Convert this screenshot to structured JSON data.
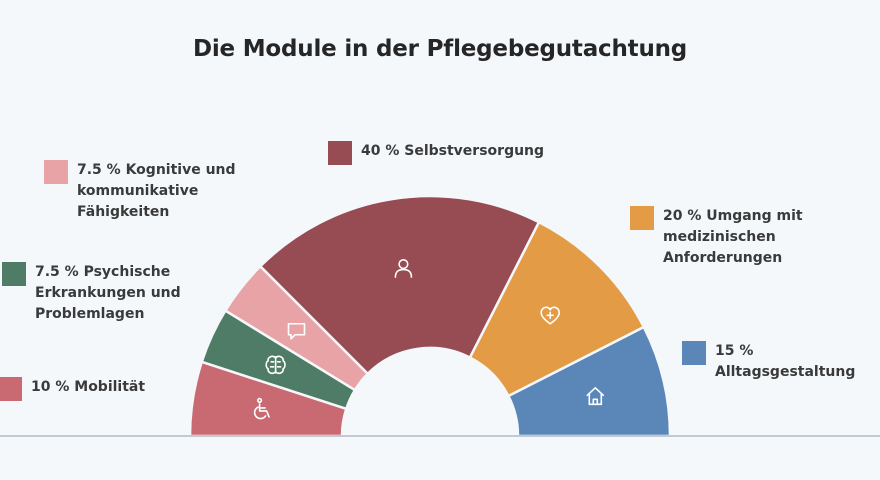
{
  "title": "Die Module in der Pflegebegutachtung",
  "chart_data": {
    "type": "pie",
    "variant": "half-donut",
    "title": "Die Module in der Pflegebegutachtung",
    "unit": "%",
    "total": 100,
    "slices": [
      {
        "label": "10 % Mobilität",
        "value": 10,
        "color": "#c96a72",
        "icon": "wheelchair-icon"
      },
      {
        "label": "7.5 % Psychische\nErkrankungen und\nProblemlagen",
        "value": 7.5,
        "color": "#4f7c66",
        "icon": "brain-icon"
      },
      {
        "label": "7.5 % Kognitive und\nkommunikative\nFähigkeiten",
        "value": 7.5,
        "color": "#e8a3a6",
        "icon": "chat-bubble-icon"
      },
      {
        "label": "40 % Selbstversorgung",
        "value": 40,
        "color": "#974b53",
        "icon": "person-icon"
      },
      {
        "label": "20 % Umgang mit\nmedizinischen\nAnforderungen",
        "value": 20,
        "color": "#e39b45",
        "icon": "heart-plus-icon"
      },
      {
        "label": "15 % Alltagsgestaltung",
        "value": 15,
        "color": "#5a87b8",
        "icon": "house-icon"
      }
    ]
  }
}
